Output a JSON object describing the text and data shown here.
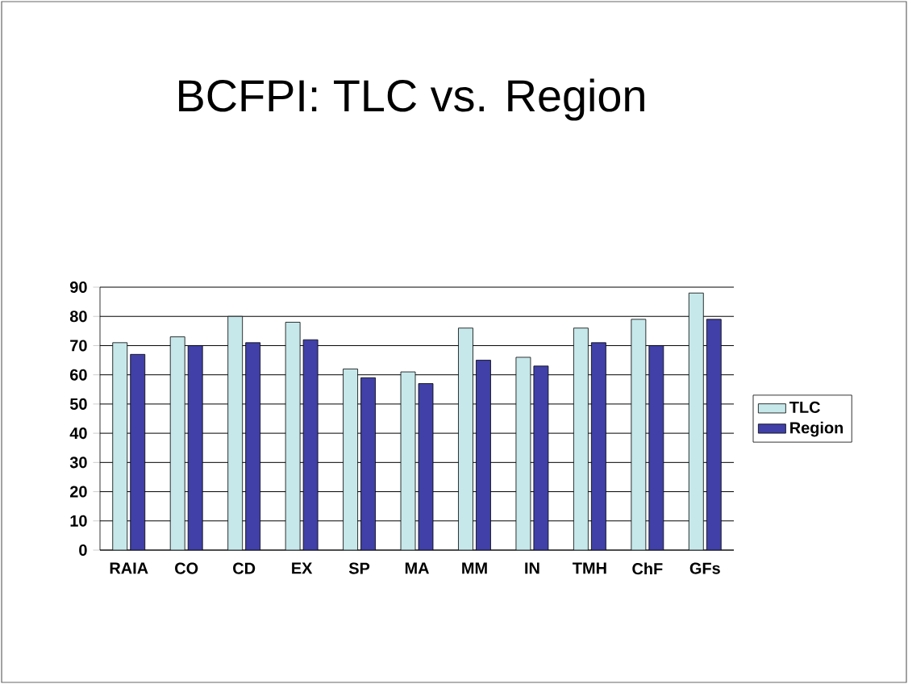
{
  "chart_data": {
    "type": "bar",
    "title": "BCFPI:  TLC vs. Region",
    "categories": [
      "RAIA",
      "CO",
      "CD",
      "EX",
      "SP",
      "MA",
      "MM",
      "IN",
      "TMH",
      "ChF",
      "GFs"
    ],
    "series": [
      {
        "name": "TLC",
        "color": "#c6e8ea",
        "values": [
          71,
          73,
          80,
          78,
          62,
          61,
          76,
          66,
          76,
          79,
          88
        ]
      },
      {
        "name": "Region",
        "color": "#4040a8",
        "values": [
          67,
          70,
          71,
          72,
          59,
          57,
          65,
          63,
          71,
          70,
          79
        ]
      }
    ],
    "ylim": [
      0,
      90
    ],
    "yticks": [
      0,
      10,
      20,
      30,
      40,
      50,
      60,
      70,
      80,
      90
    ],
    "grid": "y",
    "legend": "right"
  }
}
